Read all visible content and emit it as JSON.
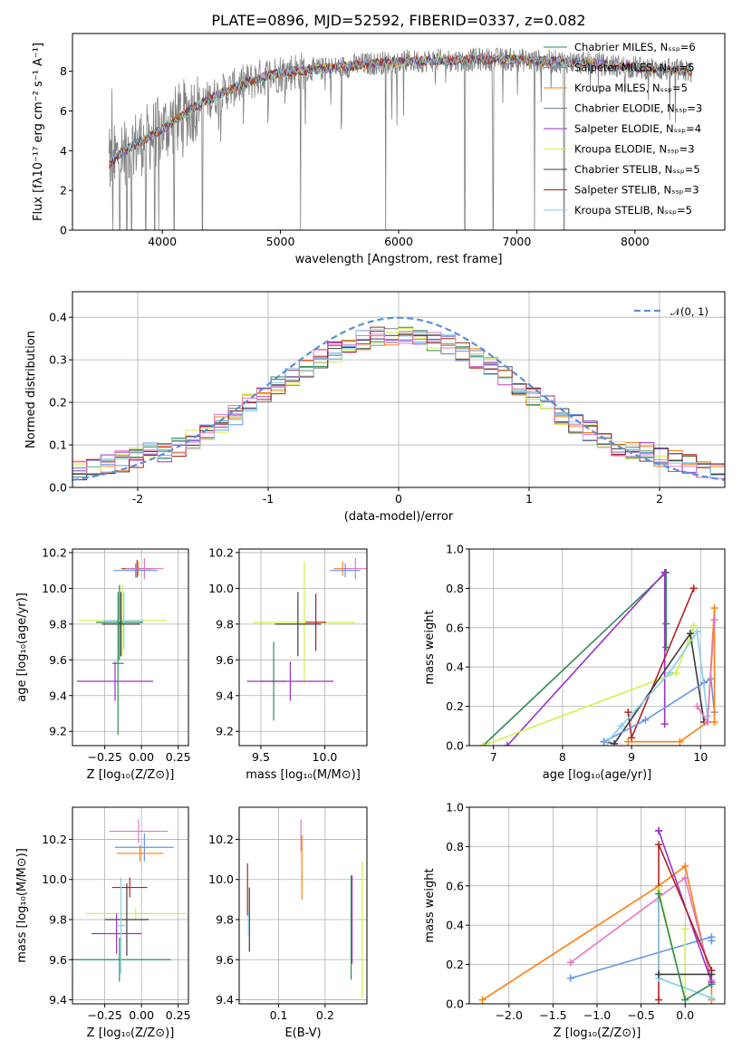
{
  "chart_data": [
    {
      "type": "line",
      "panel": "spectrum",
      "title": "PLATE=0896, MJD=52592, FIBERID=0337, z=0.082",
      "xlabel": "wavelength [Angstrom, rest frame]",
      "ylabel": "Flux [fλ10⁻¹⁷ erg cm⁻² s⁻¹ A⁻¹]",
      "xlim": [
        3240,
        8760
      ],
      "ylim": [
        0,
        9.9
      ],
      "xticks": [
        4000,
        5000,
        6000,
        7000,
        8000
      ],
      "yticks": [
        0,
        2,
        4,
        6,
        8
      ],
      "grid": false,
      "legend_position": "upper right",
      "series": [
        {
          "name": "Chabrier MILES, Nₛₛₚ=6",
          "color": "#2e8b57"
        },
        {
          "name": "Salpeter MILES, Nₛₛₚ=5",
          "color": "#6495ed"
        },
        {
          "name": "Kroupa MILES, Nₛₛₚ=5",
          "color": "#ff7f0e"
        },
        {
          "name": "Chabrier ELODIE, Nₛₛₚ=3",
          "color": "#708090"
        },
        {
          "name": "Salpeter ELODIE, Nₛₛₚ=4",
          "color": "#9932cc"
        },
        {
          "name": "Kroupa ELODIE, Nₛₛₚ=3",
          "color": "#d4f04a"
        },
        {
          "name": "Chabrier STELIB, Nₛₛₚ=5",
          "color": "#3c3c3c"
        },
        {
          "name": "Salpeter STELIB, Nₛₛₚ=3",
          "color": "#b22222"
        },
        {
          "name": "Kroupa STELIB, Nₛₛₚ=5",
          "color": "#87ceeb"
        }
      ],
      "data_color": "#808080",
      "continuum": {
        "x": [
          3550,
          3650,
          3800,
          3950,
          4100,
          4300,
          4500,
          4700,
          4900,
          5100,
          5300,
          5500,
          5700,
          5900,
          6100,
          6300,
          6500,
          6700,
          6900,
          7100,
          7300,
          7500,
          7700,
          7900,
          8100,
          8300,
          8480
        ],
        "y": [
          3.3,
          3.9,
          4.4,
          4.9,
          5.5,
          6.3,
          6.9,
          7.4,
          7.8,
          8.0,
          8.1,
          8.2,
          8.35,
          8.45,
          8.5,
          8.55,
          8.55,
          8.6,
          8.6,
          8.55,
          8.5,
          8.45,
          8.35,
          8.25,
          8.15,
          8.05,
          8.0
        ]
      }
    },
    {
      "type": "line",
      "panel": "residuals",
      "xlabel": "(data-model)/error",
      "ylabel": "Normed distribution",
      "xlim": [
        -2.5,
        2.5
      ],
      "ylim": [
        0,
        0.46
      ],
      "xticks": [
        -2,
        -1,
        0,
        1,
        2
      ],
      "yticks": [
        0.0,
        0.1,
        0.2,
        0.3,
        0.4
      ],
      "grid": true,
      "legend_position": "upper right",
      "reference": {
        "name": "𝒩(0, 1)",
        "color": "#5b8fd9",
        "style": "dashed"
      },
      "histogram_bins": 46,
      "series_colors": [
        "#2e8b57",
        "#6495ed",
        "#ff7f0e",
        "#708090",
        "#9932cc",
        "#d4f04a",
        "#3c3c3c",
        "#b22222",
        "#87ceeb",
        "#e377c2"
      ]
    },
    {
      "type": "scatter",
      "panel": "Z-vs-age",
      "xlabel": "Z [log₁₀(Z/Z⊙)]",
      "ylabel": "age  [log₁₀(age/yr)]",
      "xlim": [
        -0.47,
        0.32
      ],
      "ylim": [
        9.12,
        10.22
      ],
      "xticks": [
        -0.25,
        0.0,
        0.25
      ],
      "xticklabels": [
        "−0.25",
        "0.00",
        "0.25"
      ],
      "yticks": [
        9.2,
        9.4,
        9.6,
        9.8,
        10.0,
        10.2
      ],
      "grid": true,
      "points": [
        {
          "x": -0.02,
          "y": 10.11,
          "xerr": 0.12,
          "yerr": 0.04,
          "color": "#ff7f0e"
        },
        {
          "x": -0.03,
          "y": 10.11,
          "xerr": 0.1,
          "yerr": 0.05,
          "color": "#b22222"
        },
        {
          "x": 0.02,
          "y": 10.11,
          "xerr": 0.13,
          "yerr": 0.06,
          "color": "#e377c2"
        },
        {
          "x": -0.04,
          "y": 10.1,
          "xerr": 0.15,
          "yerr": 0.04,
          "color": "#6495ed"
        },
        {
          "x": -0.13,
          "y": 9.82,
          "xerr": 0.3,
          "yerr": 0.2,
          "color": "#d4f04a"
        },
        {
          "x": -0.15,
          "y": 9.81,
          "xerr": 0.16,
          "yerr": 0.21,
          "color": "#2e8b57"
        },
        {
          "x": -0.12,
          "y": 9.82,
          "xerr": 0.14,
          "yerr": 0.16,
          "color": "#87ceeb"
        },
        {
          "x": -0.14,
          "y": 9.8,
          "xerr": 0.13,
          "yerr": 0.18,
          "color": "#3c3c3c"
        },
        {
          "x": -0.18,
          "y": 9.48,
          "xerr": 0.26,
          "yerr": 0.11,
          "color": "#9932cc"
        },
        {
          "x": -0.16,
          "y": 9.58,
          "xerr": 0.04,
          "yerr": 0.4,
          "color": "#2e8b57"
        }
      ]
    },
    {
      "type": "scatter",
      "panel": "mass-vs-age",
      "xlabel": "mass [log₁₀(M/M⊙)]",
      "xlim": [
        9.33,
        10.33
      ],
      "ylim": [
        9.12,
        10.22
      ],
      "xticks": [
        9.5,
        10.0
      ],
      "xticklabels": [
        "9.5",
        "10.0"
      ],
      "yticks": [
        9.2,
        9.4,
        9.6,
        9.8,
        10.0,
        10.2
      ],
      "grid": true,
      "points": [
        {
          "x": 10.14,
          "y": 10.11,
          "xerr": 0.07,
          "yerr": 0.04,
          "color": "#ff7f0e"
        },
        {
          "x": 10.24,
          "y": 10.11,
          "xerr": 0.1,
          "yerr": 0.06,
          "color": "#e377c2"
        },
        {
          "x": 10.16,
          "y": 10.1,
          "xerr": 0.12,
          "yerr": 0.04,
          "color": "#6495ed"
        },
        {
          "x": 9.84,
          "y": 9.81,
          "xerr": 0.4,
          "yerr": 0.34,
          "color": "#d4f04a"
        },
        {
          "x": 9.93,
          "y": 9.81,
          "xerr": 0.08,
          "yerr": 0.16,
          "color": "#b22222"
        },
        {
          "x": 9.79,
          "y": 9.8,
          "xerr": 0.18,
          "yerr": 0.18,
          "color": "#3c3c3c"
        },
        {
          "x": 9.6,
          "y": 9.48,
          "xerr": 0.1,
          "yerr": 0.22,
          "color": "#2e8b57"
        },
        {
          "x": 9.73,
          "y": 9.48,
          "xerr": 0.34,
          "yerr": 0.11,
          "color": "#9932cc"
        }
      ]
    },
    {
      "type": "line",
      "panel": "age-weights",
      "xlabel": "age  [log₁₀(age/yr)]",
      "ylabel": "mass weight",
      "xlim": [
        6.65,
        10.35
      ],
      "ylim": [
        0.0,
        1.0
      ],
      "xticks": [
        7,
        8,
        9,
        10
      ],
      "yticks": [
        0.0,
        0.2,
        0.4,
        0.6,
        0.8,
        1.0
      ],
      "grid": true,
      "series": [
        {
          "color": "#2e8b57",
          "x": [
            6.85,
            9.5,
            9.5,
            9.5
          ],
          "y": [
            0.0,
            0.88,
            0.62,
            0.5
          ]
        },
        {
          "color": "#9932cc",
          "x": [
            7.2,
            9.48,
            9.48,
            9.48
          ],
          "y": [
            0.0,
            0.88,
            0.88,
            0.11
          ]
        },
        {
          "color": "#d4f04a",
          "x": [
            6.85,
            9.65,
            9.9,
            9.85
          ],
          "y": [
            0.0,
            0.37,
            0.61,
            0.53
          ]
        },
        {
          "color": "#b22222",
          "x": [
            8.95,
            9.0,
            9.9,
            9.9
          ],
          "y": [
            0.17,
            0.04,
            0.8,
            0.8
          ]
        },
        {
          "color": "#3c3c3c",
          "x": [
            8.6,
            8.75,
            9.85,
            10.05
          ],
          "y": [
            0.02,
            0.01,
            0.57,
            0.12
          ]
        },
        {
          "color": "#6495ed",
          "x": [
            8.6,
            9.2,
            10.05,
            10.15,
            10.2
          ],
          "y": [
            0.02,
            0.13,
            0.32,
            0.34,
            0.17
          ]
        },
        {
          "color": "#87ceeb",
          "x": [
            8.65,
            8.85,
            9.55,
            9.95,
            10.1
          ],
          "y": [
            0.02,
            0.1,
            0.37,
            0.58,
            0.15
          ]
        },
        {
          "color": "#ff7f0e",
          "x": [
            8.95,
            9.7,
            10.1,
            10.2,
            10.2
          ],
          "y": [
            0.02,
            0.02,
            0.12,
            0.7,
            0.12
          ]
        },
        {
          "color": "#e377c2",
          "x": [
            9.95,
            10.1,
            10.2
          ],
          "y": [
            0.2,
            0.12,
            0.64
          ]
        }
      ]
    },
    {
      "type": "scatter",
      "panel": "Z-vs-mass",
      "xlabel": "Z [log₁₀(Z/Z⊙)]",
      "ylabel": "mass [log₁₀(M/M⊙)]",
      "xlim": [
        -0.47,
        0.32
      ],
      "ylim": [
        9.38,
        10.36
      ],
      "xticks": [
        -0.25,
        0.0,
        0.25
      ],
      "xticklabels": [
        "−0.25",
        "0.00",
        "0.25"
      ],
      "yticks": [
        9.4,
        9.6,
        9.8,
        10.0,
        10.2
      ],
      "grid": true,
      "points": [
        {
          "x": -0.02,
          "y": 10.24,
          "xerr": 0.2,
          "yerr": 0.06,
          "color": "#e377c2"
        },
        {
          "x": 0.02,
          "y": 10.16,
          "xerr": 0.2,
          "yerr": 0.07,
          "color": "#6495ed"
        },
        {
          "x": -0.01,
          "y": 10.13,
          "xerr": 0.16,
          "yerr": 0.04,
          "color": "#ff7f0e"
        },
        {
          "x": -0.08,
          "y": 9.96,
          "xerr": 0.12,
          "yerr": 0.05,
          "color": "#b22222"
        },
        {
          "x": -0.04,
          "y": 9.83,
          "xerr": 0.34,
          "yerr": 0.03,
          "color": "#d4f04a"
        },
        {
          "x": -0.1,
          "y": 9.8,
          "xerr": 0.15,
          "yerr": 0.18,
          "color": "#3c3c3c"
        },
        {
          "x": -0.17,
          "y": 9.73,
          "xerr": 0.17,
          "yerr": 0.1,
          "color": "#9932cc"
        },
        {
          "x": -0.15,
          "y": 9.6,
          "xerr": 0.35,
          "yerr": 0.11,
          "color": "#2e8b57"
        },
        {
          "x": -0.14,
          "y": 9.77,
          "xerr": 0.03,
          "yerr": 0.24,
          "color": "#87ceeb"
        }
      ]
    },
    {
      "type": "scatter",
      "panel": "EBV-vs-mass",
      "xlabel": "E(B-V)",
      "xlim": [
        0.015,
        0.29
      ],
      "ylim": [
        9.38,
        10.36
      ],
      "xticks": [
        0.1,
        0.2
      ],
      "xticklabels": [
        "0.1",
        "0.2"
      ],
      "yticks": [
        9.4,
        9.6,
        9.8,
        10.0,
        10.2
      ],
      "grid": true,
      "points": [
        {
          "x": 0.033,
          "y": 9.95,
          "yerr": 0.13,
          "color": "#b22222"
        },
        {
          "x": 0.037,
          "y": 9.8,
          "yerr": 0.16,
          "color": "#3c3c3c"
        },
        {
          "x": 0.035,
          "y": 9.78,
          "yerr": 0.06,
          "color": "#87ceeb"
        },
        {
          "x": 0.148,
          "y": 10.22,
          "yerr": 0.08,
          "color": "#e377c2"
        },
        {
          "x": 0.15,
          "y": 10.06,
          "yerr": 0.16,
          "color": "#ff7f0e"
        },
        {
          "x": 0.258,
          "y": 9.8,
          "yerr": 0.22,
          "color": "#9932cc"
        },
        {
          "x": 0.256,
          "y": 9.76,
          "yerr": 0.26,
          "color": "#2e8b57"
        },
        {
          "x": 0.28,
          "y": 9.75,
          "yerr": 0.34,
          "color": "#d4f04a"
        }
      ]
    },
    {
      "type": "line",
      "panel": "Z-weights",
      "xlabel": "Z [log₁₀(Z/Z⊙)]",
      "ylabel": "mass weight",
      "xlim": [
        -2.45,
        0.45
      ],
      "ylim": [
        0.0,
        1.0
      ],
      "xticks": [
        -2.0,
        -1.5,
        -1.0,
        -0.5,
        0.0
      ],
      "xticklabels": [
        "−2.0",
        "−1.5",
        "−1.0",
        "−0.5",
        "0.0"
      ],
      "yticks": [
        0.0,
        0.2,
        0.4,
        0.6,
        0.8,
        1.0
      ],
      "grid": true,
      "series": [
        {
          "color": "#ff7f0e",
          "x": [
            -2.3,
            -0.3,
            0.0,
            0.3,
            0.3
          ],
          "y": [
            0.02,
            0.6,
            0.7,
            0.1,
            0.02
          ]
        },
        {
          "color": "#e377c2",
          "x": [
            -1.3,
            0.0,
            0.3
          ],
          "y": [
            0.21,
            0.64,
            0.12
          ]
        },
        {
          "color": "#6495ed",
          "x": [
            -1.3,
            0.3,
            0.3
          ],
          "y": [
            0.13,
            0.34,
            0.32
          ]
        },
        {
          "color": "#9932cc",
          "x": [
            -0.3,
            -0.3,
            0.3
          ],
          "y": [
            0.88,
            0.88,
            0.11
          ]
        },
        {
          "color": "#b22222",
          "x": [
            -0.3,
            -0.3,
            0.3
          ],
          "y": [
            0.02,
            0.81,
            0.17
          ]
        },
        {
          "color": "#d4f04a",
          "x": [
            -0.3,
            0.0,
            0.0
          ],
          "y": [
            0.58,
            0.02,
            0.38
          ]
        },
        {
          "color": "#87ceeb",
          "x": [
            -0.3,
            -0.3,
            0.3
          ],
          "y": [
            0.52,
            0.13,
            0.03
          ]
        },
        {
          "color": "#3c3c3c",
          "x": [
            -0.3,
            0.3
          ],
          "y": [
            0.15,
            0.15
          ]
        },
        {
          "color": "#2e8b57",
          "x": [
            -0.3,
            0.0,
            0.3
          ],
          "y": [
            0.56,
            0.02,
            0.1
          ]
        }
      ]
    }
  ]
}
